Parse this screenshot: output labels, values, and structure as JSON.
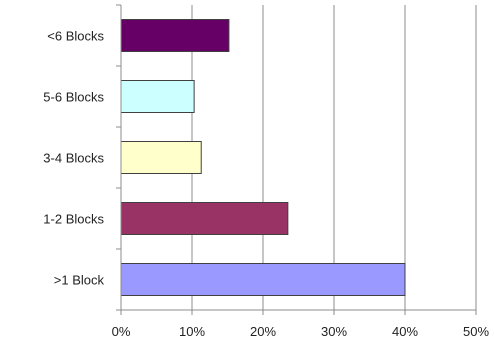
{
  "chart_data": {
    "type": "bar",
    "orientation": "horizontal",
    "title": "",
    "xlabel": "",
    "ylabel": "",
    "categories": [
      ">1 Block",
      "1-2 Blocks",
      "3-4 Blocks",
      "5-6 Blocks",
      "<6 Blocks"
    ],
    "series": [
      {
        "values": [
          0.4,
          0.235,
          0.113,
          0.103,
          0.152
        ],
        "colors": [
          "#9999ff",
          "#993366",
          "#ffffcc",
          "#ccffff",
          "#660066"
        ]
      }
    ],
    "xlim": [
      0,
      0.5
    ],
    "xticks": [
      0,
      0.1,
      0.2,
      0.3,
      0.4,
      0.5
    ],
    "xtick_labels": [
      "0%",
      "10%",
      "20%",
      "30%",
      "40%",
      "50%"
    ],
    "grid": "vertical",
    "legend": "none"
  }
}
